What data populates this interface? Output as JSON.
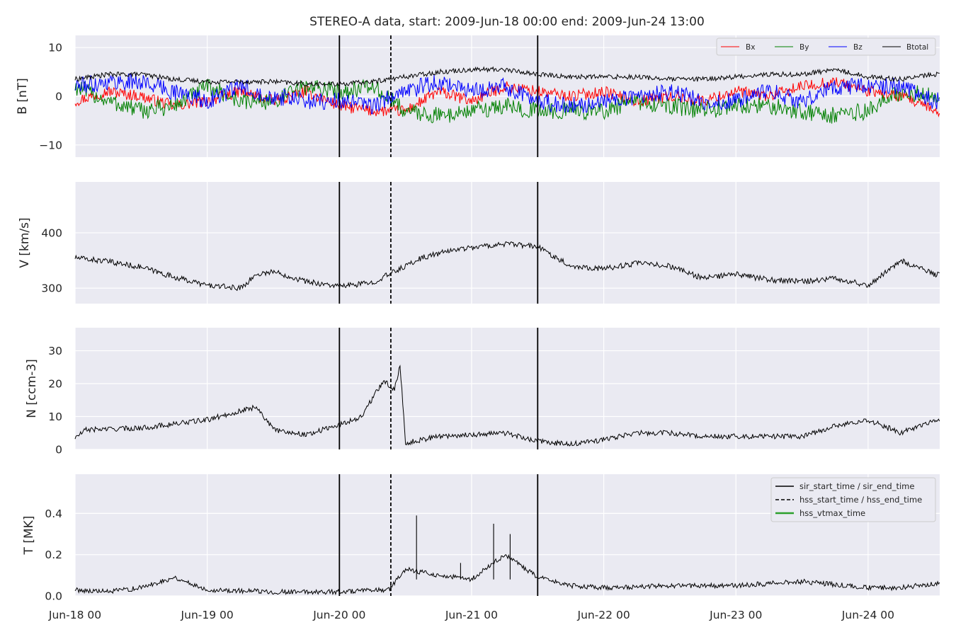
{
  "title": "STEREO-A data, start: 2009-Jun-18 00:00  end: 2009-Jun-24 13:00",
  "x_axis": {
    "start": "2009-06-18T00:00",
    "end": "2009-06-24T13:00",
    "ticks": [
      "Jun-18 00",
      "Jun-19 00",
      "Jun-20 00",
      "Jun-21 00",
      "Jun-22 00",
      "Jun-23 00",
      "Jun-24 00"
    ]
  },
  "event_lines": [
    {
      "label": "sir_start_time / sir_end_time",
      "times": [
        "2009-06-20T00:00",
        "2009-06-21T12:00"
      ],
      "style": "solid",
      "color": "#000000"
    },
    {
      "label": "hss_start_time / hss_end_time",
      "times": [
        "2009-06-20T09:20"
      ],
      "style": "dashed",
      "color": "#000000"
    },
    {
      "label": "hss_vtmax_time",
      "times": [],
      "style": "solid",
      "color": "#2ca02c"
    }
  ],
  "colors": {
    "Bx": "#ff0000",
    "By": "#008000",
    "Bz": "#0000ff",
    "Btotal": "#000000",
    "background": "#eaeaf2",
    "grid": "#ffffff"
  },
  "chart_data": [
    {
      "type": "line",
      "ylabel": "B [nT]",
      "ylim": [
        -12.5,
        12.5
      ],
      "yticks": [
        10,
        0,
        -10
      ],
      "yticklabels": [
        "10",
        "0",
        "−10"
      ],
      "legend": {
        "placement": "top-right",
        "columns": 4
      },
      "grid": true,
      "x": [
        "2009-06-18T00:00",
        "2009-06-18T06:00",
        "2009-06-18T12:00",
        "2009-06-18T18:00",
        "2009-06-19T00:00",
        "2009-06-19T06:00",
        "2009-06-19T12:00",
        "2009-06-19T18:00",
        "2009-06-20T00:00",
        "2009-06-20T06:00",
        "2009-06-20T12:00",
        "2009-06-20T18:00",
        "2009-06-21T00:00",
        "2009-06-21T06:00",
        "2009-06-21T12:00",
        "2009-06-21T18:00",
        "2009-06-22T00:00",
        "2009-06-22T06:00",
        "2009-06-22T12:00",
        "2009-06-22T18:00",
        "2009-06-23T00:00",
        "2009-06-23T06:00",
        "2009-06-23T12:00",
        "2009-06-23T18:00",
        "2009-06-24T00:00",
        "2009-06-24T06:00",
        "2009-06-24T12:00"
      ],
      "series": [
        {
          "name": "Bx",
          "values": [
            -1,
            1,
            0,
            -2,
            -1,
            1,
            -1,
            1,
            -2,
            -3,
            -3,
            1,
            -1,
            2,
            1,
            0,
            1,
            -1,
            0,
            -1,
            1,
            0,
            2,
            3,
            1,
            0,
            -3
          ],
          "noise": 1.2
        },
        {
          "name": "By",
          "values": [
            2,
            -1,
            -3,
            -2,
            2,
            -1,
            -1,
            2,
            1,
            2,
            -3,
            -4,
            -3,
            -2,
            -3,
            -3,
            -3,
            -1,
            -2,
            -3,
            -2,
            -2,
            -3,
            -4,
            -3,
            1,
            0
          ],
          "noise": 1.8
        },
        {
          "name": "Bz",
          "values": [
            2,
            3,
            3,
            1,
            -1,
            2,
            0,
            -1,
            -1,
            -2,
            1,
            3,
            1,
            2,
            -1,
            -2,
            -1,
            0,
            1,
            -1,
            -1,
            1,
            -1,
            2,
            2,
            2,
            -1
          ],
          "noise": 1.8
        },
        {
          "name": "Btotal",
          "values": [
            3.5,
            4.5,
            4.5,
            3.5,
            3,
            3,
            3,
            2.5,
            2.5,
            3,
            4,
            5,
            5.5,
            5.5,
            4.5,
            4,
            4,
            4,
            3.5,
            3.5,
            4,
            4.5,
            4.5,
            5.5,
            4,
            3.5,
            4.5
          ],
          "noise": 0.5
        }
      ]
    },
    {
      "type": "line",
      "ylabel": "V [km/s]",
      "ylim": [
        272,
        492
      ],
      "yticks": [
        400,
        300
      ],
      "grid": true,
      "x": [
        "2009-06-18T00:00",
        "2009-06-18T06:00",
        "2009-06-18T12:00",
        "2009-06-18T18:00",
        "2009-06-19T00:00",
        "2009-06-19T06:00",
        "2009-06-19T09:00",
        "2009-06-19T12:00",
        "2009-06-19T18:00",
        "2009-06-20T00:00",
        "2009-06-20T06:00",
        "2009-06-20T09:00",
        "2009-06-20T15:00",
        "2009-06-20T21:00",
        "2009-06-21T06:00",
        "2009-06-21T12:00",
        "2009-06-21T18:00",
        "2009-06-22T00:00",
        "2009-06-22T06:00",
        "2009-06-22T12:00",
        "2009-06-22T18:00",
        "2009-06-23T00:00",
        "2009-06-23T06:00",
        "2009-06-23T12:00",
        "2009-06-23T18:00",
        "2009-06-24T00:00",
        "2009-06-24T06:00",
        "2009-06-24T12:00"
      ],
      "series": [
        {
          "name": "",
          "values": [
            355,
            348,
            338,
            320,
            305,
            300,
            325,
            330,
            312,
            303,
            310,
            325,
            355,
            370,
            380,
            375,
            340,
            335,
            345,
            340,
            318,
            325,
            315,
            312,
            318,
            305,
            350,
            325
          ],
          "noise": 5
        }
      ]
    },
    {
      "type": "line",
      "ylabel": "N [ccm-3]",
      "ylim": [
        0,
        37
      ],
      "yticks": [
        30,
        20,
        10,
        0
      ],
      "grid": true,
      "x": [
        "2009-06-18T00:00",
        "2009-06-18T02:00",
        "2009-06-18T12:00",
        "2009-06-19T00:00",
        "2009-06-19T09:00",
        "2009-06-19T12:00",
        "2009-06-19T18:00",
        "2009-06-20T00:00",
        "2009-06-20T04:00",
        "2009-06-20T08:00",
        "2009-06-20T10:00",
        "2009-06-20T11:00",
        "2009-06-20T12:00",
        "2009-06-20T18:00",
        "2009-06-21T06:00",
        "2009-06-21T12:00",
        "2009-06-21T18:00",
        "2009-06-22T00:00",
        "2009-06-22T06:00",
        "2009-06-22T12:00",
        "2009-06-22T18:00",
        "2009-06-23T00:00",
        "2009-06-23T12:00",
        "2009-06-23T18:00",
        "2009-06-24T00:00",
        "2009-06-24T06:00",
        "2009-06-24T12:00"
      ],
      "series": [
        {
          "name": "",
          "values": [
            3.5,
            6,
            6.5,
            9,
            13,
            6,
            4.5,
            7.5,
            10,
            21,
            18,
            26,
            2,
            4,
            5,
            2.5,
            1.5,
            3,
            5,
            5,
            4,
            4,
            4,
            7,
            9,
            5,
            9
          ],
          "noise": 0.8
        }
      ]
    },
    {
      "type": "line",
      "ylabel": "T [MK]",
      "ylim": [
        0,
        0.59
      ],
      "yticks": [
        0.4,
        0.2,
        0.0
      ],
      "yticklabels": [
        "0.4",
        "0.2",
        "0.0"
      ],
      "legend": {
        "placement": "top-right",
        "columns": 1
      },
      "grid": true,
      "x": [
        "2009-06-18T00:00",
        "2009-06-18T06:00",
        "2009-06-18T12:00",
        "2009-06-18T18:00",
        "2009-06-19T00:00",
        "2009-06-19T12:00",
        "2009-06-20T00:00",
        "2009-06-20T09:00",
        "2009-06-20T12:00",
        "2009-06-20T18:00",
        "2009-06-21T00:00",
        "2009-06-21T06:00",
        "2009-06-21T12:00",
        "2009-06-21T18:00",
        "2009-06-22T00:00",
        "2009-06-22T12:00",
        "2009-06-23T00:00",
        "2009-06-23T12:00",
        "2009-06-24T00:00",
        "2009-06-24T06:00",
        "2009-06-24T12:00"
      ],
      "series": [
        {
          "name": "",
          "values": [
            0.03,
            0.02,
            0.04,
            0.09,
            0.03,
            0.02,
            0.02,
            0.03,
            0.13,
            0.1,
            0.08,
            0.2,
            0.09,
            0.05,
            0.04,
            0.05,
            0.05,
            0.07,
            0.04,
            0.04,
            0.06
          ],
          "noise": 0.012
        },
        {
          "name": "",
          "spikes_x": [
            "2009-06-20T14:00",
            "2009-06-21T04:00",
            "2009-06-21T07:00",
            "2009-06-20T22:00"
          ],
          "spikes": [
            0.39,
            0.35,
            0.3,
            0.16
          ]
        }
      ]
    }
  ]
}
